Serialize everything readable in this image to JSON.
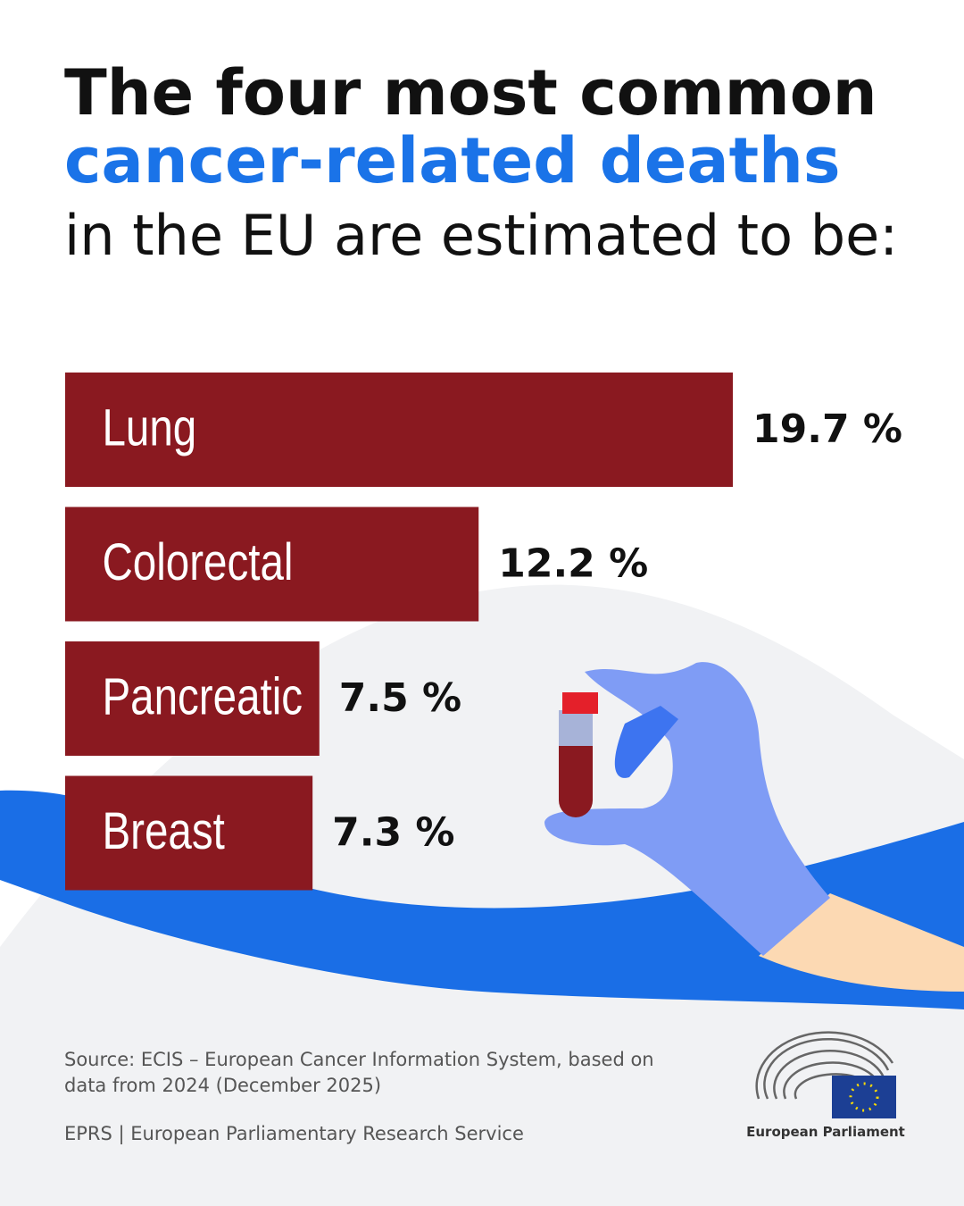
{
  "chart_data": {
    "type": "hbar",
    "title_lines": [
      "The four most common",
      "cancer-related deaths",
      "in the EU are estimated to be:"
    ],
    "categories": [
      "Lung",
      "Colorectal",
      "Pancreatic",
      "Breast"
    ],
    "values": [
      19.7,
      12.2,
      7.5,
      7.3
    ],
    "value_labels": [
      "19.7 %",
      "12.2 %",
      "7.5 %",
      "7.3 %"
    ],
    "color": "#8a1920"
  },
  "footer": {
    "source": [
      "Source: ECIS – European Cancer Information System, based on",
      "data from 2024 (December 2025)"
    ],
    "credit": "EPRS | European Parliamentary Research Service",
    "logo": "European Parliament"
  }
}
